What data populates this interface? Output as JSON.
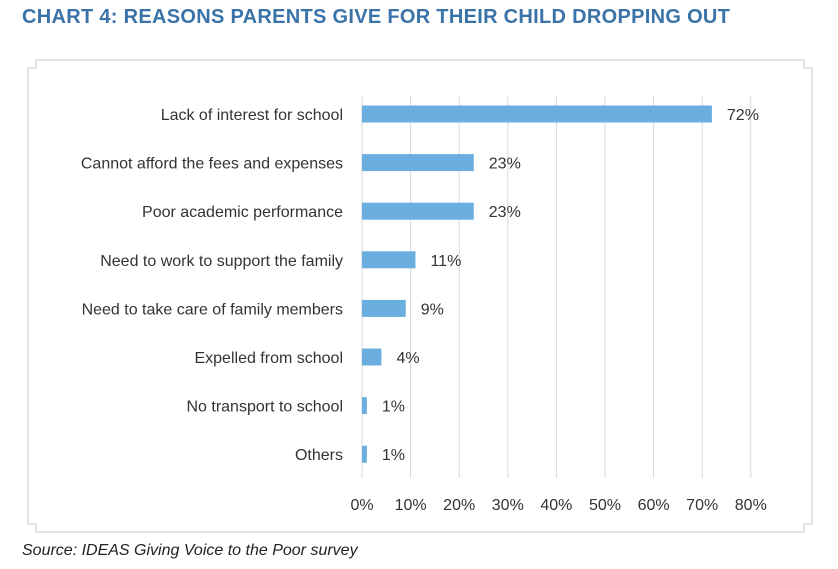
{
  "title": "CHART 4: REASONS PARENTS GIVE FOR THEIR CHILD DROPPING OUT",
  "source": "Source: IDEAS Giving Voice to the Poor survey",
  "colors": {
    "title": "#3a73a8",
    "bar": "#6aaee0",
    "grid": "#d9d9d9",
    "frame": "#c8c8c8"
  },
  "chart_data": {
    "type": "bar",
    "orientation": "horizontal",
    "title": "CHART 4: REASONS PARENTS GIVE FOR THEIR CHILD DROPPING OUT",
    "categories": [
      "Lack of interest for school",
      "Cannot afford the fees and expenses",
      "Poor academic performance",
      "Need to work to support the family",
      "Need to take care of family members",
      "Expelled from school",
      "No transport to school",
      "Others"
    ],
    "values": [
      72,
      23,
      23,
      11,
      9,
      4,
      1,
      1
    ],
    "data_labels": [
      "72%",
      "23%",
      "23%",
      "11%",
      "9%",
      "4%",
      "1%",
      "1%"
    ],
    "xlim": [
      0,
      80
    ],
    "xticks": [
      0,
      10,
      20,
      30,
      40,
      50,
      60,
      70,
      80
    ],
    "xtick_labels": [
      "0%",
      "10%",
      "20%",
      "30%",
      "40%",
      "50%",
      "60%",
      "70%",
      "80%"
    ],
    "xlabel": "",
    "ylabel": "",
    "grid": true,
    "legend": "none"
  }
}
